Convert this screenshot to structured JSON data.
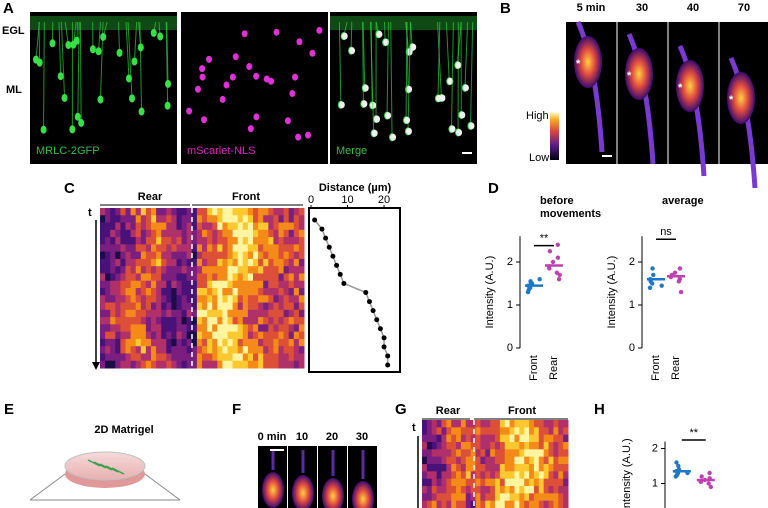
{
  "panels": {
    "A": {
      "label": "A",
      "regions": [
        "EGL",
        "ML"
      ],
      "channels": [
        "MRLC-2GFP",
        "mScarlet-NLS",
        "Merge"
      ]
    },
    "B": {
      "label": "B",
      "times": [
        "5 min",
        "30",
        "40",
        "70"
      ],
      "marker": "*",
      "colorbar": {
        "high": "High",
        "low": "Low"
      }
    },
    "C": {
      "label": "C",
      "rear": "Rear",
      "front": "Front",
      "time_axis": "t",
      "distance_plot": {
        "title": "Distance (µm)",
        "xlim": [
          0,
          23
        ],
        "xticks": [
          0,
          10,
          20
        ],
        "values": [
          1,
          3,
          4,
          5,
          6,
          7,
          8,
          9,
          15,
          16,
          17,
          18,
          19,
          20,
          20,
          21,
          21
        ]
      }
    },
    "D": {
      "label": "D",
      "ylabel": "Intensity (A.U.)",
      "charts": [
        {
          "title_lines": [
            "before",
            "movements"
          ],
          "categories": [
            "Front",
            "Rear"
          ],
          "ylim": [
            0,
            2.6
          ],
          "yticks": [
            0,
            1,
            2
          ],
          "significance": "**",
          "colors": [
            "#1f77c8",
            "#c040b0"
          ],
          "means": [
            1.45,
            1.92
          ],
          "points": [
            [
              1.3,
              1.4,
              1.45,
              1.5,
              1.55,
              1.35,
              1.6,
              1.45,
              1.5
            ],
            [
              1.6,
              1.75,
              1.9,
              2.0,
              2.1,
              2.25,
              2.4,
              1.85,
              1.7
            ]
          ]
        },
        {
          "title_lines": [
            "average"
          ],
          "categories": [
            "Front",
            "Rear"
          ],
          "ylim": [
            0,
            2.6
          ],
          "yticks": [
            0,
            1,
            2
          ],
          "significance": "ns",
          "colors": [
            "#1f77c8",
            "#c040b0"
          ],
          "means": [
            1.6,
            1.67
          ],
          "points": [
            [
              1.4,
              1.5,
              1.6,
              1.7,
              1.85,
              1.55,
              1.45
            ],
            [
              1.3,
              1.55,
              1.65,
              1.75,
              1.85,
              1.7,
              1.6
            ]
          ]
        }
      ]
    },
    "E": {
      "label": "E",
      "title": "2D Matrigel"
    },
    "F": {
      "label": "F",
      "times": [
        "0 min",
        "10",
        "20",
        "30"
      ]
    },
    "G": {
      "label": "G",
      "rear": "Rear",
      "front": "Front",
      "time_axis": "t"
    },
    "H": {
      "label": "H",
      "ylabel": "Intensity (A.U.)",
      "ylim": [
        0.3,
        2.2
      ],
      "yticks": [
        1,
        2
      ],
      "significance": "**",
      "colors": [
        "#1f77c8",
        "#c040b0"
      ],
      "means": [
        1.35,
        1.1
      ],
      "points": [
        [
          1.2,
          1.3,
          1.35,
          1.4,
          1.5,
          1.6,
          1.3,
          1.25
        ],
        [
          0.9,
          1.0,
          1.05,
          1.1,
          1.15,
          1.2,
          1.3,
          1.05
        ]
      ]
    }
  }
}
